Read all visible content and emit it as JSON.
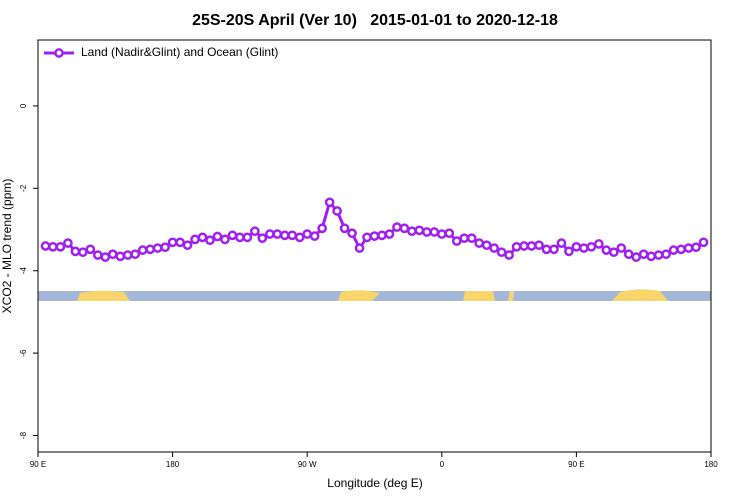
{
  "chart_data": {
    "type": "line",
    "title": "25S-20S April (Ver 10)   2015-01-01 to 2020-12-18",
    "x_label": "Longitude (deg E)",
    "y_label": "XCO2 - MLO trend (ppm)",
    "x": [
      95,
      100,
      105,
      110,
      115,
      120,
      125,
      130,
      135,
      140,
      145,
      150,
      155,
      160,
      165,
      170,
      175,
      180,
      185,
      190,
      195,
      200,
      205,
      210,
      215,
      220,
      225,
      230,
      235,
      240,
      245,
      250,
      255,
      260,
      265,
      270,
      275,
      280,
      285,
      290,
      295,
      300,
      305,
      310,
      315,
      320,
      325,
      330,
      335,
      340,
      345,
      350,
      355,
      360,
      365,
      370,
      375,
      380,
      385,
      390,
      395,
      400,
      405,
      410,
      415,
      420,
      425,
      430,
      435,
      440,
      445,
      450,
      455,
      460,
      465,
      470,
      475,
      480,
      485,
      490,
      495,
      500,
      505,
      510,
      515,
      520,
      525,
      530,
      535
    ],
    "series": [
      {
        "name": "Land (Nadir&Glint) and Ocean (Glint)",
        "color": "#a020f0",
        "values": [
          -3.4,
          -3.42,
          -3.42,
          -3.33,
          -3.53,
          -3.55,
          -3.48,
          -3.62,
          -3.67,
          -3.6,
          -3.65,
          -3.62,
          -3.6,
          -3.5,
          -3.48,
          -3.45,
          -3.43,
          -3.31,
          -3.31,
          -3.38,
          -3.24,
          -3.19,
          -3.26,
          -3.17,
          -3.24,
          -3.14,
          -3.19,
          -3.19,
          -3.04,
          -3.21,
          -3.11,
          -3.11,
          -3.14,
          -3.14,
          -3.19,
          -3.11,
          -3.16,
          -2.97,
          -2.34,
          -2.55,
          -2.97,
          -3.09,
          -3.45,
          -3.19,
          -3.16,
          -3.14,
          -3.11,
          -2.94,
          -2.97,
          -3.04,
          -3.02,
          -3.06,
          -3.06,
          -3.11,
          -3.09,
          -3.28,
          -3.21,
          -3.21,
          -3.33,
          -3.38,
          -3.45,
          -3.55,
          -3.62,
          -3.42,
          -3.4,
          -3.4,
          -3.38,
          -3.48,
          -3.48,
          -3.33,
          -3.53,
          -3.42,
          -3.45,
          -3.42,
          -3.35,
          -3.5,
          -3.55,
          -3.45,
          -3.6,
          -3.67,
          -3.6,
          -3.65,
          -3.62,
          -3.6,
          -3.5,
          -3.48,
          -3.45,
          -3.43,
          -3.31
        ]
      }
    ],
    "xlim": [
      90,
      540
    ],
    "ylim": [
      -8.4,
      1.6
    ],
    "xticks": [
      {
        "value": 90,
        "label": "90 E"
      },
      180,
      {
        "value": 270,
        "label": "90 W"
      },
      {
        "value": 360,
        "label": "0"
      },
      {
        "value": 450,
        "label": "90 E"
      },
      {
        "value": 540,
        "label": "180"
      }
    ],
    "yticks": [
      -8,
      -6,
      -4,
      -2,
      0
    ],
    "legend": "top-left"
  }
}
